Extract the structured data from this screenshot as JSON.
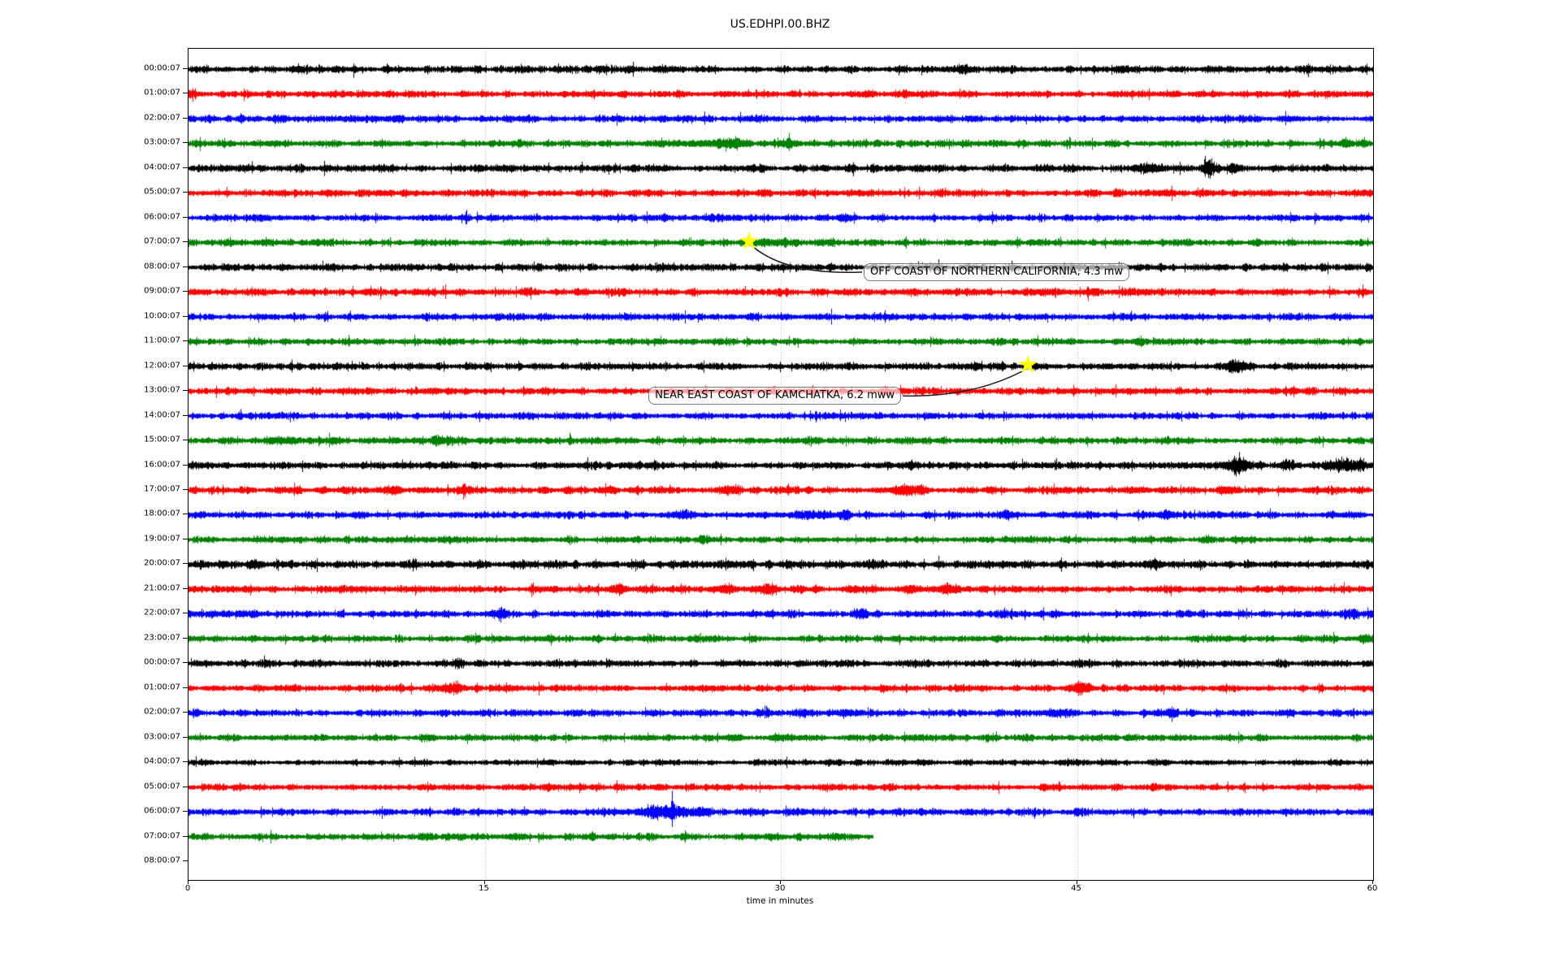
{
  "title": "US.EDHPI.00.BHZ",
  "colors": {
    "cycle": {
      "k": "#000000",
      "r": "#ff0000",
      "b": "#0000ff",
      "g": "#008000"
    },
    "grid": "#9e9e9e",
    "spine": "#000000",
    "star": "#ffff00",
    "arrow": "#1a1a1a",
    "annotation_border": "#767676",
    "annotation_bg": "rgba(255,255,255,0.62)"
  },
  "x_axis": {
    "label": "time in minutes",
    "ticks": [
      0,
      15,
      30,
      45,
      60
    ],
    "range": [
      0,
      60
    ],
    "gridlines": [
      15,
      30,
      45
    ]
  },
  "chart_data": {
    "type": "helicorder",
    "title": "US.EDHPI.00.BHZ",
    "xlabel": "time in minutes",
    "x_range_minutes": [
      0,
      60
    ],
    "x_ticks": [
      0,
      15,
      30,
      45,
      60
    ],
    "grid_minutes": [
      15,
      30,
      45
    ],
    "color_cycle_order": [
      "black",
      "red",
      "blue",
      "green"
    ],
    "rows": [
      {
        "label": "00:00:07",
        "color": "k",
        "base_amp": 3.0,
        "end_minute": 60,
        "bursts": [
          [
            39.2,
            0.35,
            2.5
          ],
          [
            47.3,
            0.5,
            2.0
          ]
        ],
        "spikes": [
          [
            39.2,
            5
          ],
          [
            47.2,
            4
          ]
        ]
      },
      {
        "label": "01:00:07",
        "color": "r",
        "base_amp": 2.9,
        "end_minute": 60,
        "bursts": [],
        "spikes": []
      },
      {
        "label": "02:00:07",
        "color": "b",
        "base_amp": 2.8,
        "end_minute": 60,
        "bursts": [
          [
            10.6,
            0.4,
            1.5
          ]
        ],
        "spikes": []
      },
      {
        "label": "03:00:07",
        "color": "g",
        "base_amp": 2.8,
        "end_minute": 60,
        "bursts": [
          [
            26.0,
            2.0,
            1.5
          ],
          [
            27.7,
            0.4,
            3.0
          ],
          [
            30.4,
            0.4,
            3.0
          ],
          [
            58.6,
            0.3,
            2.0
          ]
        ],
        "spikes": [
          [
            27.7,
            9
          ],
          [
            30.4,
            13
          ],
          [
            24.8,
            5
          ],
          [
            58.6,
            8
          ]
        ]
      },
      {
        "label": "04:00:07",
        "color": "k",
        "base_amp": 3.0,
        "end_minute": 60,
        "bursts": [
          [
            16.0,
            0.3,
            1.5
          ],
          [
            48.6,
            0.6,
            2.5
          ],
          [
            51.6,
            0.35,
            6.0
          ],
          [
            53.0,
            0.4,
            3.0
          ]
        ],
        "spikes": [
          [
            19.9,
            8
          ],
          [
            51.5,
            15
          ],
          [
            51.8,
            12
          ],
          [
            49.3,
            6
          ]
        ]
      },
      {
        "label": "05:00:07",
        "color": "r",
        "base_amp": 2.9,
        "end_minute": 60,
        "bursts": [],
        "spikes": []
      },
      {
        "label": "06:00:07",
        "color": "b",
        "base_amp": 2.8,
        "end_minute": 60,
        "bursts": [],
        "spikes": []
      },
      {
        "label": "07:00:07",
        "color": "g",
        "base_amp": 2.8,
        "end_minute": 60,
        "bursts": [
          [
            29.6,
            1.2,
            1.3
          ]
        ],
        "spikes": []
      },
      {
        "label": "08:00:07",
        "color": "k",
        "base_amp": 2.9,
        "end_minute": 60,
        "bursts": [],
        "spikes": []
      },
      {
        "label": "09:00:07",
        "color": "r",
        "base_amp": 3.0,
        "end_minute": 60,
        "bursts": [],
        "spikes": []
      },
      {
        "label": "10:00:07",
        "color": "b",
        "base_amp": 2.8,
        "end_minute": 60,
        "bursts": [],
        "spikes": []
      },
      {
        "label": "11:00:07",
        "color": "g",
        "base_amp": 2.7,
        "end_minute": 60,
        "bursts": [],
        "spikes": []
      },
      {
        "label": "12:00:07",
        "color": "k",
        "base_amp": 2.9,
        "end_minute": 60,
        "bursts": [
          [
            53.0,
            0.5,
            4.0
          ]
        ],
        "spikes": [
          [
            53.0,
            7
          ],
          [
            52.8,
            5
          ]
        ]
      },
      {
        "label": "13:00:07",
        "color": "r",
        "base_amp": 2.9,
        "end_minute": 60,
        "bursts": [],
        "spikes": []
      },
      {
        "label": "14:00:07",
        "color": "b",
        "base_amp": 2.7,
        "end_minute": 60,
        "bursts": [],
        "spikes": []
      },
      {
        "label": "15:00:07",
        "color": "g",
        "base_amp": 2.8,
        "end_minute": 60,
        "bursts": [
          [
            4.6,
            0.7,
            2.0
          ],
          [
            12.9,
            0.7,
            2.5
          ]
        ],
        "spikes": []
      },
      {
        "label": "16:00:07",
        "color": "k",
        "base_amp": 3.0,
        "end_minute": 60,
        "bursts": [
          [
            53.2,
            0.5,
            6.0
          ],
          [
            55.6,
            0.35,
            3.0
          ],
          [
            58.4,
            0.6,
            3.5
          ],
          [
            59.3,
            0.4,
            3.5
          ]
        ],
        "spikes": [
          [
            53.2,
            16
          ],
          [
            53.4,
            10
          ],
          [
            55.6,
            8
          ],
          [
            58.1,
            7
          ],
          [
            58.7,
            6
          ],
          [
            59.3,
            7
          ],
          [
            45.7,
            4
          ]
        ]
      },
      {
        "label": "17:00:07",
        "color": "r",
        "base_amp": 2.9,
        "end_minute": 60,
        "bursts": [
          [
            10.2,
            0.5,
            2.5
          ],
          [
            13.9,
            0.3,
            3.0
          ],
          [
            27.5,
            0.4,
            2.0
          ],
          [
            36.4,
            0.8,
            3.0
          ],
          [
            40.6,
            0.3,
            2.0
          ],
          [
            52.6,
            0.5,
            2.5
          ]
        ],
        "spikes": [
          [
            37.0,
            6
          ],
          [
            13.9,
            5
          ]
        ]
      },
      {
        "label": "18:00:07",
        "color": "b",
        "base_amp": 2.8,
        "end_minute": 60,
        "bursts": [
          [
            25.2,
            0.4,
            2.0
          ],
          [
            31.5,
            0.8,
            2.5
          ],
          [
            33.2,
            0.3,
            2.5
          ],
          [
            41.5,
            0.4,
            2.5
          ],
          [
            49.7,
            0.5,
            2.0
          ]
        ],
        "spikes": [
          [
            31.9,
            6
          ],
          [
            41.5,
            5
          ]
        ]
      },
      {
        "label": "19:00:07",
        "color": "g",
        "base_amp": 2.7,
        "end_minute": 60,
        "bursts": [
          [
            26.0,
            0.25,
            2.0
          ],
          [
            42.6,
            0.3,
            1.5
          ],
          [
            51.5,
            0.3,
            1.5
          ]
        ],
        "spikes": [
          [
            26.0,
            -7
          ]
        ]
      },
      {
        "label": "20:00:07",
        "color": "k",
        "base_amp": 3.3,
        "end_minute": 60,
        "bursts": [
          [
            3.2,
            0.3,
            1.5
          ],
          [
            34.7,
            0.3,
            2.0
          ],
          [
            48.8,
            0.4,
            1.5
          ]
        ],
        "spikes": [
          [
            3.2,
            5
          ],
          [
            15.0,
            5
          ],
          [
            34.7,
            6
          ],
          [
            40.5,
            5
          ],
          [
            44.0,
            4
          ],
          [
            48.8,
            5
          ],
          [
            57.8,
            5
          ]
        ]
      },
      {
        "label": "21:00:07",
        "color": "r",
        "base_amp": 2.9,
        "end_minute": 60,
        "bursts": [
          [
            21.8,
            0.4,
            2.0
          ],
          [
            27.2,
            0.7,
            2.5
          ],
          [
            29.3,
            0.5,
            4.0
          ],
          [
            31.0,
            0.3,
            2.0
          ],
          [
            36.6,
            0.5,
            2.0
          ],
          [
            38.4,
            0.5,
            2.5
          ]
        ],
        "spikes": [
          [
            29.4,
            7
          ]
        ]
      },
      {
        "label": "22:00:07",
        "color": "b",
        "base_amp": 2.9,
        "end_minute": 60,
        "bursts": [
          [
            2.5,
            1.5,
            1.2
          ],
          [
            15.8,
            0.25,
            3.0
          ],
          [
            34.0,
            0.3,
            2.0
          ],
          [
            58.9,
            0.4,
            2.0
          ]
        ],
        "spikes": [
          [
            15.8,
            -11
          ]
        ]
      },
      {
        "label": "23:00:07",
        "color": "g",
        "base_amp": 2.7,
        "end_minute": 60,
        "bursts": [
          [
            18.3,
            0.3,
            1.5
          ],
          [
            59.6,
            0.35,
            3.0
          ]
        ],
        "spikes": [
          [
            51.8,
            6
          ]
        ]
      },
      {
        "label": "00:00:07",
        "color": "k",
        "base_amp": 2.9,
        "end_minute": 60,
        "bursts": [
          [
            13.5,
            0.3,
            1.5
          ]
        ],
        "spikes": []
      },
      {
        "label": "01:00:07",
        "color": "r",
        "base_amp": 2.8,
        "end_minute": 60,
        "bursts": [
          [
            13.4,
            0.5,
            3.5
          ],
          [
            45.2,
            0.5,
            3.0
          ]
        ],
        "spikes": [
          [
            13.2,
            6
          ],
          [
            13.7,
            5
          ],
          [
            45.3,
            6
          ],
          [
            45.0,
            4
          ]
        ]
      },
      {
        "label": "02:00:07",
        "color": "b",
        "base_amp": 2.8,
        "end_minute": 60,
        "bursts": [
          [
            31.0,
            0.4,
            2.0
          ],
          [
            33.5,
            0.4,
            2.5
          ],
          [
            44.0,
            0.5,
            2.0
          ],
          [
            49.8,
            0.3,
            2.0
          ]
        ],
        "spikes": []
      },
      {
        "label": "03:00:07",
        "color": "g",
        "base_amp": 2.8,
        "end_minute": 60,
        "bursts": [],
        "spikes": []
      },
      {
        "label": "04:00:07",
        "color": "k",
        "base_amp": 2.4,
        "end_minute": 60,
        "bursts": [],
        "spikes": []
      },
      {
        "label": "05:00:07",
        "color": "r",
        "base_amp": 2.8,
        "end_minute": 60,
        "bursts": [
          [
            23.8,
            0.2,
            2.0
          ],
          [
            48.9,
            0.3,
            2.0
          ]
        ],
        "spikes": []
      },
      {
        "label": "06:00:07",
        "color": "b",
        "base_amp": 2.8,
        "end_minute": 60,
        "bursts": [
          [
            23.4,
            0.5,
            4.0
          ],
          [
            24.5,
            0.8,
            5.0
          ],
          [
            26.0,
            0.4,
            3.0
          ]
        ],
        "spikes": [
          [
            24.5,
            26
          ],
          [
            24.2,
            8
          ],
          [
            24.8,
            7
          ]
        ]
      },
      {
        "label": "07:00:07",
        "color": "g",
        "base_amp": 2.8,
        "end_minute": 34.7,
        "bursts": [],
        "spikes": []
      },
      {
        "label": "08:00:07",
        "color": "k",
        "base_amp": 2.8,
        "end_minute": 0,
        "bursts": [],
        "spikes": []
      }
    ],
    "annotations": [
      {
        "label": "OFF COAST OF NORTHERN CALIFORNIA, 4.3 mw",
        "star_row": 6.95,
        "star_minute": 28.4,
        "box_row": 8.2,
        "box_minute": 34.2,
        "attach": "left"
      },
      {
        "label": "NEAR EAST COAST OF KAMCHATKA, 6.2 mww",
        "star_row": 11.95,
        "star_minute": 42.5,
        "box_row": 13.2,
        "box_minute": 23.3,
        "attach": "right"
      }
    ]
  }
}
